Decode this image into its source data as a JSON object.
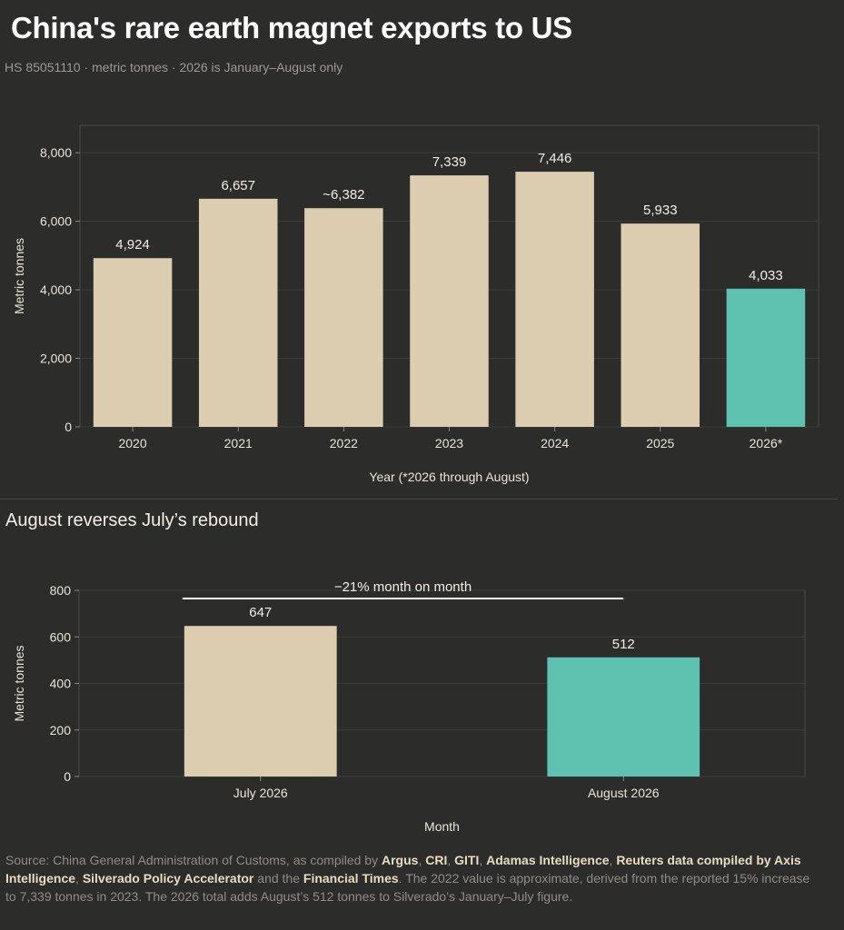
{
  "header": {
    "title": "China's rare earth magnet exports to US",
    "subtitle": "HS 85051110 · metric tonnes · 2026 is January–August only"
  },
  "section2": {
    "title": "August reverses July’s rebound"
  },
  "colors": {
    "bar": "#dccdb0",
    "highlight": "#5fc2b0",
    "background": "#2c2c2b"
  },
  "chart_data": [
    {
      "type": "bar",
      "categories": [
        "2020",
        "2021",
        "2022",
        "2023",
        "2024",
        "2025",
        "2026*"
      ],
      "values": [
        4924,
        6657,
        6382,
        7339,
        7446,
        5933,
        4033
      ],
      "data_labels": [
        "4,924",
        "6,657",
        "~6,382",
        "7,339",
        "7,446",
        "5,933",
        "4,033"
      ],
      "highlight_index": 6,
      "title": "",
      "xlabel": "Year (*2026 through August)",
      "ylabel": "Metric tonnes",
      "ylim": [
        0,
        8800
      ],
      "yticks": [
        0,
        2000,
        4000,
        6000,
        8000
      ],
      "ytick_labels": [
        "0",
        "2,000",
        "4,000",
        "6,000",
        "8,000"
      ],
      "grid": true
    },
    {
      "type": "bar",
      "categories": [
        "July 2026",
        "August 2026"
      ],
      "values": [
        647,
        512
      ],
      "data_labels": [
        "647",
        "512"
      ],
      "highlight_index": 1,
      "title": "",
      "xlabel": "Month",
      "ylabel": "Metric tonnes",
      "ylim": [
        0,
        800
      ],
      "yticks": [
        0,
        200,
        400,
        600,
        800
      ],
      "ytick_labels": [
        "0",
        "200",
        "400",
        "600",
        "800"
      ],
      "annotation": "−21% month on month",
      "grid": true
    }
  ],
  "footer": {
    "prefix": "Source: China General Administration of Customs, as compiled by ",
    "sources": [
      "Argus",
      "CRI",
      "GITI",
      "Adamas Intelligence",
      "Reuters data compiled by Axis Intelligence",
      "Silverado Policy Accelerator",
      "Financial Times"
    ],
    "sep": ", ",
    "and": " and the ",
    "suffix": ". The 2022 value is approximate, derived from the reported 15% increase to 7,339 tonnes in 2023. The 2026 total adds August’s 512 tonnes to Silverado’s January–July figure."
  }
}
